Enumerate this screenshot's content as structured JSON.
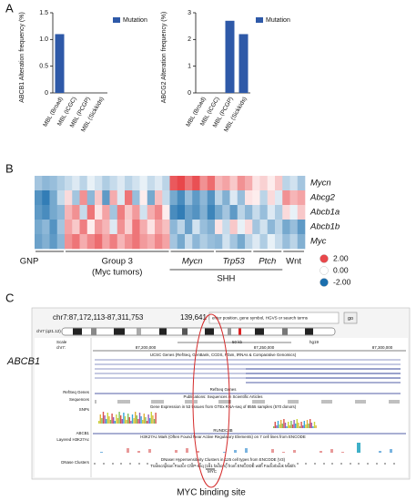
{
  "panel_labels": [
    "A",
    "B",
    "C"
  ],
  "chart_data": [
    {
      "type": "bar",
      "ylabel": "ABCB1 Alteration frequency (%)",
      "categories": [
        "MBL (Broad)",
        "MBL (ICGC)",
        "MBL (PCGP)",
        "MBL (Sickkids)"
      ],
      "series": [
        {
          "name": "Mutation",
          "color": "#2e59a8",
          "values": [
            1.1,
            0,
            0,
            0
          ]
        }
      ],
      "ylim": [
        0,
        1.5
      ],
      "yticks": [
        0,
        0.5,
        {
          "value": 1,
          "label": "1.0"
        },
        1.5
      ]
    },
    {
      "type": "bar",
      "ylabel": "ABCG2 Alteration frequency (%)",
      "categories": [
        "MBL (Broad)",
        "MBL (ICGC)",
        "MBL (PCGP)",
        "MBL (Sickkids)"
      ],
      "series": [
        {
          "name": "Mutation",
          "color": "#2e59a8",
          "values": [
            0,
            0,
            2.7,
            2.2
          ]
        }
      ],
      "ylim": [
        0,
        3
      ],
      "yticks": [
        0,
        1,
        2,
        3
      ]
    },
    {
      "type": "heatmap",
      "rows": [
        "Mycn",
        "Abcg2",
        "Abcb1a",
        "Abcb1b",
        "Myc"
      ],
      "values": [
        [
          -0.8,
          -1.0,
          -0.9,
          -0.7,
          -0.5,
          -0.3,
          -0.6,
          -0.2,
          -0.4,
          -0.7,
          -0.5,
          -0.3,
          -0.6,
          -0.4,
          -0.2,
          -0.5,
          -0.3,
          -0.6,
          1.8,
          2.0,
          1.5,
          1.9,
          1.2,
          1.6,
          0.8,
          1.0,
          0.6,
          1.2,
          0.9,
          0.3,
          0.5,
          0.2,
          0.6,
          -0.6,
          -0.4,
          -0.8
        ],
        [
          -1.5,
          -1.8,
          -1.2,
          -0.5,
          0.4,
          -0.8,
          1.2,
          -1.0,
          0.6,
          -1.4,
          0.9,
          -0.3,
          1.5,
          -0.9,
          0.2,
          -1.2,
          0.7,
          -0.5,
          -1.2,
          -1.6,
          -0.9,
          -1.4,
          -1.0,
          -1.5,
          -0.6,
          -1.1,
          -0.3,
          -0.9,
          0.3,
          0.2,
          -0.6,
          0.4,
          -0.3,
          1.2,
          0.8,
          1.0
        ],
        [
          -1.4,
          -1.6,
          -1.2,
          -1.0,
          0.8,
          1.2,
          -0.5,
          1.5,
          0.3,
          1.0,
          -0.8,
          1.4,
          0.6,
          1.1,
          -0.4,
          0.9,
          1.3,
          0.2,
          -1.6,
          -1.8,
          -1.3,
          -1.5,
          -1.1,
          -1.7,
          -1.2,
          -0.8,
          -1.4,
          -0.6,
          -1.0,
          -0.5,
          -0.9,
          -0.3,
          -0.7,
          0.4,
          -0.2,
          0.6
        ],
        [
          -1.2,
          -1.0,
          -1.5,
          -0.8,
          1.0,
          0.6,
          1.4,
          0.2,
          1.1,
          0.8,
          -0.3,
          1.2,
          0.5,
          1.5,
          0.9,
          0.3,
          1.0,
          0.7,
          -1.0,
          -0.6,
          -1.3,
          -0.4,
          -0.9,
          -1.1,
          0.3,
          -0.5,
          0.6,
          -0.2,
          0.4,
          -0.8,
          -0.4,
          -1.0,
          -0.6,
          -1.2,
          -0.9,
          -1.4
        ],
        [
          -1.3,
          -1.1,
          -1.4,
          -1.0,
          1.2,
          1.5,
          0.9,
          1.3,
          1.6,
          1.0,
          1.4,
          0.8,
          1.2,
          1.5,
          1.1,
          0.9,
          1.3,
          1.0,
          -0.8,
          -1.2,
          -0.5,
          -1.0,
          -0.7,
          -0.9,
          -1.0,
          -0.4,
          -0.8,
          -1.2,
          -0.6,
          -0.3,
          -0.7,
          -0.2,
          -0.5,
          -0.9,
          -0.6,
          -1.1
        ]
      ],
      "groups": [
        {
          "label": "GNP",
          "start": 0,
          "end": 3
        },
        {
          "label": "Group 3",
          "sublabel": "(Myc tumors)",
          "start": 4,
          "end": 17
        },
        {
          "label": "Mycn",
          "start": 18,
          "end": 23
        },
        {
          "label": "Trp53",
          "start": 24,
          "end": 28
        },
        {
          "label": "Ptch",
          "start": 29,
          "end": 32
        },
        {
          "label": "Wnt",
          "start": 33,
          "end": 35
        }
      ],
      "supergroups": [
        {
          "label": "SHH",
          "start": 18,
          "end": 32
        }
      ],
      "colorscale": {
        "colors": [
          "#1b6fae",
          "#ffffff",
          "#e8474b"
        ],
        "ticks": [
          {
            "value": 2,
            "label": "2.00"
          },
          {
            "value": 0,
            "label": "0.00"
          },
          {
            "value": -2,
            "label": "-2.00"
          }
        ]
      }
    }
  ],
  "browser": {
    "position": "chr7:87,172,113-87,311,753",
    "size": "139,641 bp.",
    "search_placeholder": "enter position, gene symbol, HGVS or search terms",
    "go": "go",
    "band": "chr7 (q21.12)",
    "gene": "ABCB1",
    "scale": {
      "label": "Scale",
      "chrom": "chr7:",
      "span": "50 kb",
      "assembly": "hg19",
      "coords": [
        "87,200,000",
        "87,250,000",
        "87,300,000"
      ]
    },
    "tracks": [
      {
        "left": "",
        "title": "UCSC Genes (RefSeq, GenBank, CCDS, Rfam, tRNAs & Comparative Genomics)"
      },
      {
        "left": "RefSeq Genes",
        "title": "RefSeq Genes"
      },
      {
        "left": "Sequences",
        "title": "Publications: Sequences in Scientific Articles"
      },
      {
        "left": "SNPs",
        "title": "Gene Expression in 53 tissues from GTEx RNA-seq of 8555 samples (570 donors)"
      },
      {
        "left": "ABCB1",
        "title": "RUNDC3B"
      },
      {
        "left": "Layered H3K27Ac",
        "title": "H3K27Ac Mark (Often Found Near Active Regulatory Elements) on 7 cell lines from ENCODE"
      },
      {
        "left": "DNase Clusters",
        "title": "DNaseI Hypersensitivity Clusters in 125 cell types from ENCODE (V3)"
      },
      {
        "left": "",
        "title": "Transcription Factor ChIP-seq (161 factors) from ENCODE with Factorbook Motifs"
      }
    ],
    "site": "MYC"
  },
  "caption": "MYC binding site"
}
